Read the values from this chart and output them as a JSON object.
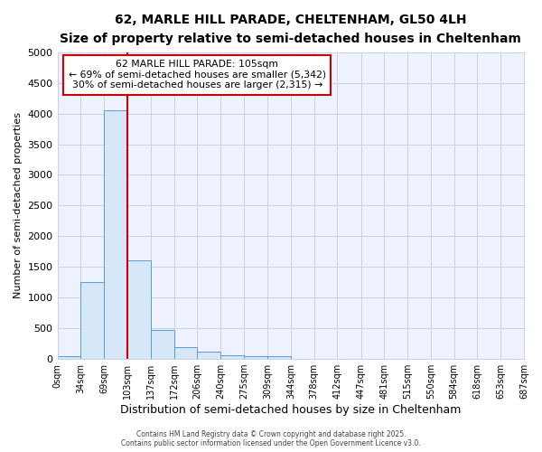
{
  "title1": "62, MARLE HILL PARADE, CHELTENHAM, GL50 4LH",
  "title2": "Size of property relative to semi-detached houses in Cheltenham",
  "xlabel": "Distribution of semi-detached houses by size in Cheltenham",
  "ylabel": "Number of semi-detached properties",
  "bar_edges": [
    0,
    34,
    69,
    103,
    137,
    172,
    206,
    240,
    275,
    309,
    344,
    378,
    412,
    447,
    481,
    515,
    550,
    584,
    618,
    653,
    687
  ],
  "bar_heights": [
    50,
    1250,
    4050,
    1600,
    480,
    200,
    115,
    60,
    45,
    40,
    0,
    0,
    0,
    0,
    0,
    0,
    0,
    0,
    0,
    0
  ],
  "bar_color": "#d6e8f7",
  "bar_edge_color": "#5b9bd5",
  "property_line_x": 103,
  "property_line_color": "#cc0000",
  "annotation_title": "62 MARLE HILL PARADE: 105sqm",
  "annotation_line1": "← 69% of semi-detached houses are smaller (5,342)",
  "annotation_line2": "30% of semi-detached houses are larger (2,315) →",
  "annotation_box_color": "#ffffff",
  "annotation_box_edge": "#cc0000",
  "ylim": [
    0,
    5000
  ],
  "yticks": [
    0,
    500,
    1000,
    1500,
    2000,
    2500,
    3000,
    3500,
    4000,
    4500,
    5000
  ],
  "xtick_labels": [
    "0sqm",
    "34sqm",
    "69sqm",
    "103sqm",
    "137sqm",
    "172sqm",
    "206sqm",
    "240sqm",
    "275sqm",
    "309sqm",
    "344sqm",
    "378sqm",
    "412sqm",
    "447sqm",
    "481sqm",
    "515sqm",
    "550sqm",
    "584sqm",
    "618sqm",
    "653sqm",
    "687sqm"
  ],
  "footer1": "Contains HM Land Registry data © Crown copyright and database right 2025.",
  "footer2": "Contains public sector information licensed under the Open Government Licence v3.0.",
  "background_color": "#ffffff",
  "plot_bg_color": "#eef2ff",
  "grid_color": "#c8d0e8"
}
